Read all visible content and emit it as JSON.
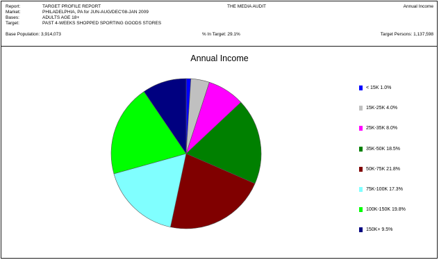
{
  "header": {
    "rows": [
      {
        "label": "Report:",
        "value": "TARGET PROFILE REPORT"
      },
      {
        "label": "Market:",
        "value": "PHILADELPHIA, PA for JUN-AUG/DEC'08-JAN 2009"
      },
      {
        "label": "Bases:",
        "value": "ADULTS AGE 18+"
      },
      {
        "label": "Target:",
        "value": "PAST 4-WEEKS SHOPPED SPORTING GOODS STORES"
      }
    ],
    "center_title": "THE MEDIA AUDIT",
    "right_title": "Annual Income",
    "base_population": "Base Population: 3,914,073",
    "pct_in_target": "% In Target: 29.1%",
    "target_persons": "Target Persons: 1,137,598"
  },
  "chart_data": {
    "type": "pie",
    "title": "Annual Income",
    "slices": [
      {
        "label": "< 15K",
        "value": 1.0,
        "color": "#0000ff",
        "legend": "< 15K 1.0%"
      },
      {
        "label": "15K-25K",
        "value": 4.0,
        "color": "#c0c0c0",
        "legend": "15K-25K 4.0%"
      },
      {
        "label": "25K-35K",
        "value": 8.0,
        "color": "#ff00ff",
        "legend": "25K-35K 8.0%"
      },
      {
        "label": "35K-50K",
        "value": 18.5,
        "color": "#008000",
        "legend": "35K-50K 18.5%"
      },
      {
        "label": "50K-75K",
        "value": 21.8,
        "color": "#800000",
        "legend": "50K-75K 21.8%"
      },
      {
        "label": "75K-100K",
        "value": 17.3,
        "color": "#80ffff",
        "legend": "75K-100K 17.3%"
      },
      {
        "label": "100K-150K",
        "value": 19.8,
        "color": "#00ff00",
        "legend": "100K-150K 19.8%"
      },
      {
        "label": "150K+",
        "value": 9.5,
        "color": "#000080",
        "legend": "150K+ 9.5%"
      }
    ],
    "legend_position": "right"
  }
}
